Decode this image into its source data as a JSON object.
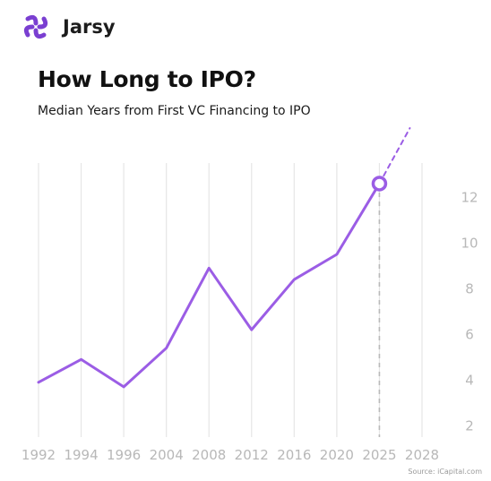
{
  "brand": {
    "name": "Jarsy",
    "color": "#7a3fd1",
    "logo_icon": "jarsy-logo-icon"
  },
  "header": {
    "title": "How Long to IPO?",
    "subtitle": "Median Years from First VC Financing to IPO"
  },
  "source": "Source: iCapital.com",
  "chart_data": {
    "type": "line",
    "title": "How Long to IPO?",
    "subtitle": "Median Years from First VC Financing to IPO",
    "categories": [
      "1992",
      "1994",
      "1996",
      "2004",
      "2008",
      "2012",
      "2016",
      "2020",
      "2025",
      "2028"
    ],
    "series": [
      {
        "values": [
          3.9,
          4.9,
          3.7,
          5.4,
          8.9,
          6.2,
          8.4,
          9.5,
          12.6,
          null
        ]
      }
    ],
    "projection": {
      "from": "2025",
      "value": 12.6,
      "style": "dashed"
    },
    "highlight": {
      "category": "2025",
      "value": 12.6
    },
    "ylim": [
      1.5,
      13.5
    ],
    "yticks": [
      2,
      4,
      6,
      8,
      10,
      12
    ],
    "y_axis_side": "right",
    "grid": "vertical",
    "colors": {
      "line": "#9b5de5",
      "grid": "#e6e6e6",
      "tick": "#b8b8b8",
      "marker_fill": "#ffffff"
    }
  }
}
